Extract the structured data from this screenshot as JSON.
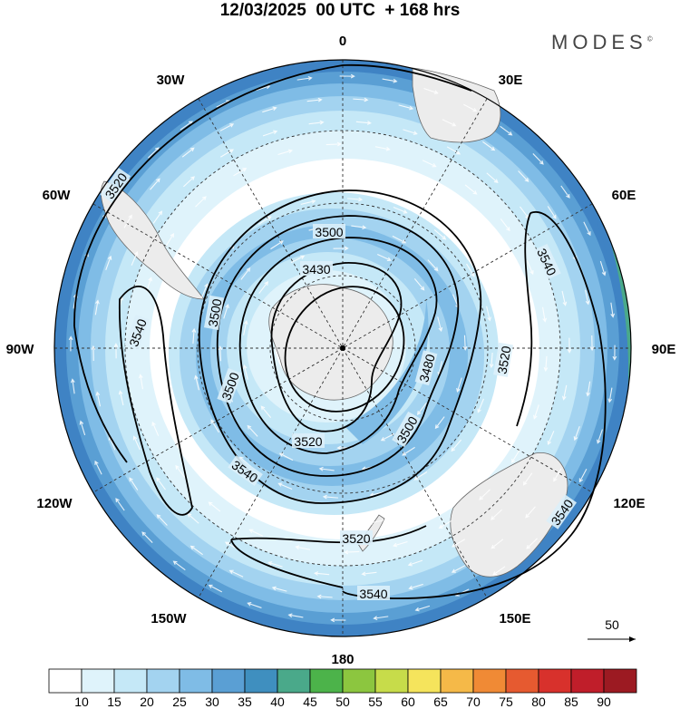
{
  "header": {
    "title": "12/03/2025  00 UTC  + 168 hrs",
    "brand": "MODES",
    "brand_mark": "©"
  },
  "map": {
    "projection": "south polar stereographic",
    "longitude_labels": {
      "top": "0",
      "top_left": "30W",
      "top_right": "30E",
      "upper_left": "60W",
      "upper_right": "60E",
      "left": "90W",
      "right": "90E",
      "lower_left": "120W",
      "lower_right": "120E",
      "bottom_left": "150W",
      "bottom_right": "150E",
      "bottom": "180"
    },
    "contour_labels": [
      "3520",
      "3500",
      "3430",
      "3540",
      "3500",
      "3540",
      "3520",
      "3500",
      "3480",
      "3520",
      "3500",
      "3540",
      "3520",
      "3540",
      "3540"
    ],
    "vector_reference": "50"
  },
  "colorbar": {
    "ticks": [
      "10",
      "15",
      "20",
      "25",
      "30",
      "35",
      "40",
      "45",
      "50",
      "55",
      "60",
      "65",
      "70",
      "75",
      "80",
      "85",
      "90"
    ],
    "colors": [
      "#ffffff",
      "#dff3fb",
      "#c5e8f7",
      "#a3d3f0",
      "#7fbce6",
      "#5a9fd4",
      "#3f8fbf",
      "#4aa98a",
      "#4cb34a",
      "#8cc63f",
      "#c7dc4a",
      "#f5e45c",
      "#f5b948",
      "#f08a35",
      "#e65a30",
      "#d8312c",
      "#c01e2a",
      "#9c1a22"
    ]
  }
}
